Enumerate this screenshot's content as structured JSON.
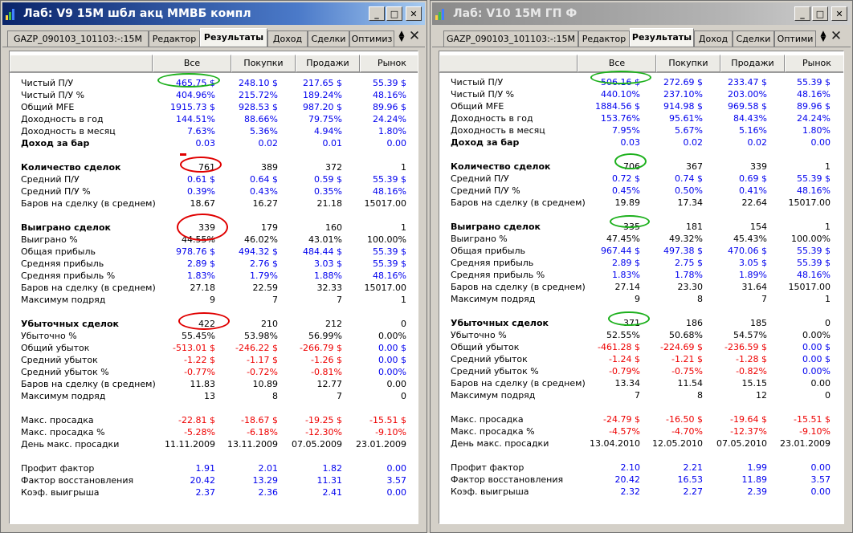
{
  "windows": [
    {
      "title": "Лаб: V9 15M шбл акц ММВБ компл",
      "tabs": [
        "GAZP_090103_101103:-:15M",
        "Редактор",
        "Результаты",
        "Доход",
        "Сделки",
        "Оптимиз"
      ],
      "active_tab": 2,
      "columns": [
        "Все",
        "Покупки",
        "Продажи",
        "Рынок"
      ],
      "rows": [
        {
          "label": "Чистый П/У",
          "values": [
            "465.75 $",
            "248.10 $",
            "217.65 $",
            "55.39 $"
          ],
          "color": "blue"
        },
        {
          "label": "Чистый П/У %",
          "values": [
            "404.96%",
            "215.72%",
            "189.24%",
            "48.16%"
          ],
          "color": "blue"
        },
        {
          "label": "Общий MFE",
          "values": [
            "1915.73 $",
            "928.53 $",
            "987.20 $",
            "89.96 $"
          ],
          "color": "blue"
        },
        {
          "label": "Доходность в год",
          "values": [
            "144.51%",
            "88.66%",
            "79.75%",
            "24.24%"
          ],
          "color": "blue"
        },
        {
          "label": "Доходность в месяц",
          "values": [
            "7.63%",
            "5.36%",
            "4.94%",
            "1.80%"
          ],
          "color": "blue"
        },
        {
          "label": "Доход за бар",
          "values": [
            "0.03",
            "0.02",
            "0.01",
            "0.00"
          ],
          "color": "blue",
          "bold": true
        },
        {
          "gap": true
        },
        {
          "label": "Количество сделок",
          "values": [
            "761",
            "389",
            "372",
            "1"
          ],
          "color": "black",
          "bold": true
        },
        {
          "label": "Средний П/У",
          "values": [
            "0.61 $",
            "0.64 $",
            "0.59 $",
            "55.39 $"
          ],
          "color": "blue"
        },
        {
          "label": "Средний П/У %",
          "values": [
            "0.39%",
            "0.43%",
            "0.35%",
            "48.16%"
          ],
          "color": "blue"
        },
        {
          "label": "Баров на сделку (в среднем)",
          "values": [
            "18.67",
            "16.27",
            "21.18",
            "15017.00"
          ],
          "color": "black"
        },
        {
          "gap": true
        },
        {
          "label": "Выиграно сделок",
          "values": [
            "339",
            "179",
            "160",
            "1"
          ],
          "color": "black",
          "bold": true
        },
        {
          "label": "Выиграно %",
          "values": [
            "44.55%",
            "46.02%",
            "43.01%",
            "100.00%"
          ],
          "color": "black"
        },
        {
          "label": "Общая прибыль",
          "values": [
            "978.76 $",
            "494.32 $",
            "484.44 $",
            "55.39 $"
          ],
          "color": "blue"
        },
        {
          "label": "Средняя прибыль",
          "values": [
            "2.89 $",
            "2.76 $",
            "3.03 $",
            "55.39 $"
          ],
          "color": "blue"
        },
        {
          "label": "Средняя прибыль %",
          "values": [
            "1.83%",
            "1.79%",
            "1.88%",
            "48.16%"
          ],
          "color": "blue"
        },
        {
          "label": "Баров на сделку (в среднем)",
          "values": [
            "27.18",
            "22.59",
            "32.33",
            "15017.00"
          ],
          "color": "black"
        },
        {
          "label": "Максимум подряд",
          "values": [
            "9",
            "7",
            "7",
            "1"
          ],
          "color": "black"
        },
        {
          "gap": true
        },
        {
          "label": "Убыточных сделок",
          "values": [
            "422",
            "210",
            "212",
            "0"
          ],
          "color": "black",
          "bold": true
        },
        {
          "label": "Убыточно %",
          "values": [
            "55.45%",
            "53.98%",
            "56.99%",
            "0.00%"
          ],
          "color": "black"
        },
        {
          "label": "Общий убыток",
          "values": [
            "-513.01 $",
            "-246.22 $",
            "-266.79 $",
            "0.00 $"
          ],
          "color": "red",
          "last_color": "blue"
        },
        {
          "label": "Средний убыток",
          "values": [
            "-1.22 $",
            "-1.17 $",
            "-1.26 $",
            "0.00 $"
          ],
          "color": "red",
          "last_color": "blue"
        },
        {
          "label": "Средний убыток %",
          "values": [
            "-0.77%",
            "-0.72%",
            "-0.81%",
            "0.00%"
          ],
          "color": "red",
          "last_color": "blue"
        },
        {
          "label": "Баров на сделку (в среднем)",
          "values": [
            "11.83",
            "10.89",
            "12.77",
            "0.00"
          ],
          "color": "black"
        },
        {
          "label": "Максимум подряд",
          "values": [
            "13",
            "8",
            "7",
            "0"
          ],
          "color": "black"
        },
        {
          "gap": true
        },
        {
          "label": "Макс. просадка",
          "values": [
            "-22.81 $",
            "-18.67 $",
            "-19.25 $",
            "-15.51 $"
          ],
          "color": "red"
        },
        {
          "label": "Макс. просадка %",
          "values": [
            "-5.28%",
            "-6.18%",
            "-12.30%",
            "-9.10%"
          ],
          "color": "red"
        },
        {
          "label": "День макс. просадки",
          "values": [
            "11.11.2009",
            "13.11.2009",
            "07.05.2009",
            "23.01.2009"
          ],
          "color": "black"
        },
        {
          "gap": true
        },
        {
          "label": "Профит фактор",
          "values": [
            "1.91",
            "2.01",
            "1.82",
            "0.00"
          ],
          "color": "blue"
        },
        {
          "label": "Фактор восстановления",
          "values": [
            "20.42",
            "13.29",
            "11.31",
            "3.57"
          ],
          "color": "blue"
        },
        {
          "label": "Коэф. выигрыша",
          "values": [
            "2.37",
            "2.36",
            "2.41",
            "0.00"
          ],
          "color": "blue"
        }
      ]
    },
    {
      "title": "Лаб: V10 15M ГП Ф",
      "tabs": [
        "GAZP_090103_101103:-:15M",
        "Редактор",
        "Результаты",
        "Доход",
        "Сделки",
        "Оптими"
      ],
      "active_tab": 2,
      "columns": [
        "Все",
        "Покупки",
        "Продажи",
        "Рынок"
      ],
      "rows": [
        {
          "label": "Чистый П/У",
          "values": [
            "506.16 $",
            "272.69 $",
            "233.47 $",
            "55.39 $"
          ],
          "color": "blue"
        },
        {
          "label": "Чистый П/У %",
          "values": [
            "440.10%",
            "237.10%",
            "203.00%",
            "48.16%"
          ],
          "color": "blue"
        },
        {
          "label": "Общий MFE",
          "values": [
            "1884.56 $",
            "914.98 $",
            "969.58 $",
            "89.96 $"
          ],
          "color": "blue"
        },
        {
          "label": "Доходность в год",
          "values": [
            "153.76%",
            "95.61%",
            "84.43%",
            "24.24%"
          ],
          "color": "blue"
        },
        {
          "label": "Доходность в месяц",
          "values": [
            "7.95%",
            "5.67%",
            "5.16%",
            "1.80%"
          ],
          "color": "blue"
        },
        {
          "label": "Доход за бар",
          "values": [
            "0.03",
            "0.02",
            "0.02",
            "0.00"
          ],
          "color": "blue",
          "bold": true
        },
        {
          "gap": true
        },
        {
          "label": "Количество сделок",
          "values": [
            "706",
            "367",
            "339",
            "1"
          ],
          "color": "black",
          "bold": true
        },
        {
          "label": "Средний П/У",
          "values": [
            "0.72 $",
            "0.74 $",
            "0.69 $",
            "55.39 $"
          ],
          "color": "blue"
        },
        {
          "label": "Средний П/У %",
          "values": [
            "0.45%",
            "0.50%",
            "0.41%",
            "48.16%"
          ],
          "color": "blue"
        },
        {
          "label": "Баров на сделку (в среднем)",
          "values": [
            "19.89",
            "17.34",
            "22.64",
            "15017.00"
          ],
          "color": "black"
        },
        {
          "gap": true
        },
        {
          "label": "Выиграно сделок",
          "values": [
            "335",
            "181",
            "154",
            "1"
          ],
          "color": "black",
          "bold": true
        },
        {
          "label": "Выиграно %",
          "values": [
            "47.45%",
            "49.32%",
            "45.43%",
            "100.00%"
          ],
          "color": "black"
        },
        {
          "label": "Общая прибыль",
          "values": [
            "967.44 $",
            "497.38 $",
            "470.06 $",
            "55.39 $"
          ],
          "color": "blue"
        },
        {
          "label": "Средняя прибыль",
          "values": [
            "2.89 $",
            "2.75 $",
            "3.05 $",
            "55.39 $"
          ],
          "color": "blue"
        },
        {
          "label": "Средняя прибыль %",
          "values": [
            "1.83%",
            "1.78%",
            "1.89%",
            "48.16%"
          ],
          "color": "blue"
        },
        {
          "label": "Баров на сделку (в среднем)",
          "values": [
            "27.14",
            "23.30",
            "31.64",
            "15017.00"
          ],
          "color": "black"
        },
        {
          "label": "Максимум подряд",
          "values": [
            "9",
            "8",
            "7",
            "1"
          ],
          "color": "black"
        },
        {
          "gap": true
        },
        {
          "label": "Убыточных сделок",
          "values": [
            "371",
            "186",
            "185",
            "0"
          ],
          "color": "black",
          "bold": true
        },
        {
          "label": "Убыточно %",
          "values": [
            "52.55%",
            "50.68%",
            "54.57%",
            "0.00%"
          ],
          "color": "black"
        },
        {
          "label": "Общий убыток",
          "values": [
            "-461.28 $",
            "-224.69 $",
            "-236.59 $",
            "0.00 $"
          ],
          "color": "red",
          "last_color": "blue"
        },
        {
          "label": "Средний убыток",
          "values": [
            "-1.24 $",
            "-1.21 $",
            "-1.28 $",
            "0.00 $"
          ],
          "color": "red",
          "last_color": "blue"
        },
        {
          "label": "Средний убыток %",
          "values": [
            "-0.79%",
            "-0.75%",
            "-0.82%",
            "0.00%"
          ],
          "color": "red",
          "last_color": "blue"
        },
        {
          "label": "Баров на сделку (в среднем)",
          "values": [
            "13.34",
            "11.54",
            "15.15",
            "0.00"
          ],
          "color": "black"
        },
        {
          "label": "Максимум подряд",
          "values": [
            "7",
            "8",
            "12",
            "0"
          ],
          "color": "black"
        },
        {
          "gap": true
        },
        {
          "label": "Макс. просадка",
          "values": [
            "-24.79 $",
            "-16.50 $",
            "-19.64 $",
            "-15.51 $"
          ],
          "color": "red"
        },
        {
          "label": "Макс. просадка %",
          "values": [
            "-4.57%",
            "-4.70%",
            "-12.37%",
            "-9.10%"
          ],
          "color": "red"
        },
        {
          "label": "День макс. просадки",
          "values": [
            "13.04.2010",
            "12.05.2010",
            "07.05.2010",
            "23.01.2009"
          ],
          "color": "black"
        },
        {
          "gap": true
        },
        {
          "label": "Профит фактор",
          "values": [
            "2.10",
            "2.21",
            "1.99",
            "0.00"
          ],
          "color": "blue"
        },
        {
          "label": "Фактор восстановления",
          "values": [
            "20.42",
            "16.53",
            "11.89",
            "3.57"
          ],
          "color": "blue"
        },
        {
          "label": "Коэф. выигрыша",
          "values": [
            "2.32",
            "2.27",
            "2.39",
            "0.00"
          ],
          "color": "blue"
        }
      ]
    }
  ],
  "colors": {
    "blue": "#0000ee",
    "red": "#ee0000",
    "black": "#000000",
    "mark_green": "#1cb01c",
    "mark_red": "#e00000"
  },
  "titlebar_buttons": [
    "minimize",
    "maximize",
    "close"
  ],
  "icons": [
    "app-chart-icon",
    "tab-scroll-arrows-icon",
    "tab-close-icon"
  ]
}
